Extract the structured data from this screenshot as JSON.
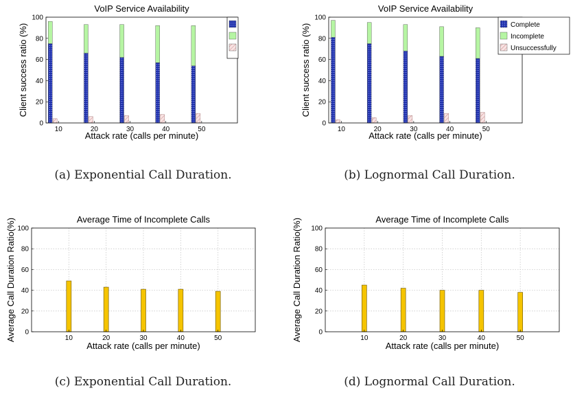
{
  "figures": [
    {
      "caption": "(a) Exponential Call Duration.",
      "chart_data": {
        "type": "bar",
        "stacked": true,
        "title": "VoIP Service Availability",
        "xlabel": "Attack rate (calls per minute)",
        "ylabel": "Client success ratio (%)",
        "categories": [
          "10",
          "20",
          "30",
          "40",
          "50"
        ],
        "ylim": [
          0,
          100
        ],
        "yticks": [
          "0",
          "20",
          "40",
          "60",
          "80",
          "100"
        ],
        "grid": false,
        "legend": {
          "placement": "top-right",
          "entries_visible": false
        },
        "series": [
          {
            "key": "complete",
            "values": [
              75,
              66,
              62,
              57,
              54
            ],
            "color": "#1d2fa8"
          },
          {
            "key": "incomplete",
            "values": [
              21,
              27,
              31,
              35,
              38
            ],
            "color": "#b6f5a3"
          },
          {
            "key": "unsuccessful",
            "values": [
              4,
              6,
              7,
              8,
              9
            ],
            "color": "#f6d6d6"
          }
        ]
      }
    },
    {
      "caption": "(b) Lognormal Call Duration.",
      "chart_data": {
        "type": "bar",
        "stacked": true,
        "title": "VoIP Service Availability",
        "xlabel": "Attack rate (calls per minute)",
        "ylabel": "Client success ratio (%)",
        "categories": [
          "10",
          "20",
          "30",
          "40",
          "50"
        ],
        "ylim": [
          0,
          100
        ],
        "yticks": [
          "0",
          "20",
          "40",
          "60",
          "80",
          "100"
        ],
        "grid": false,
        "legend": {
          "placement": "top-right",
          "entries_visible": true
        },
        "series": [
          {
            "name": "Complete",
            "key": "complete",
            "values": [
              81,
              75,
              68,
              63,
              61
            ],
            "color": "#1d2fa8"
          },
          {
            "name": "Incomplete",
            "key": "incomplete",
            "values": [
              16,
              20,
              25,
              28,
              29
            ],
            "color": "#b6f5a3"
          },
          {
            "name": "Unsuccessfully",
            "key": "unsuccessful",
            "values": [
              3,
              5,
              7,
              9,
              10
            ],
            "color": "#f6d6d6"
          }
        ]
      }
    },
    {
      "caption": "(c) Exponential Call Duration.",
      "chart_data": {
        "type": "bar",
        "stacked": false,
        "title": "Average Time of Incomplete Calls",
        "xlabel": "Attack rate (calls per minute)",
        "ylabel": "Average Call Duration Ratio(%)",
        "categories": [
          "10",
          "20",
          "30",
          "40",
          "50"
        ],
        "ylim": [
          0,
          100
        ],
        "yticks": [
          "0",
          "20",
          "40",
          "60",
          "80",
          "100"
        ],
        "grid": true,
        "series": [
          {
            "key": "avg",
            "values": [
              49,
              43,
              41,
              41,
              39
            ],
            "color": "#f5c400"
          }
        ]
      }
    },
    {
      "caption": "(d) Lognormal Call Duration.",
      "chart_data": {
        "type": "bar",
        "stacked": false,
        "title": "Average Time of Incomplete Calls",
        "xlabel": "Attack rate (calls per minute)",
        "ylabel": "Average Call Duration Ratio(%)",
        "categories": [
          "10",
          "20",
          "30",
          "40",
          "50"
        ],
        "ylim": [
          0,
          100
        ],
        "yticks": [
          "0",
          "20",
          "40",
          "60",
          "80",
          "100"
        ],
        "grid": true,
        "series": [
          {
            "key": "avg",
            "values": [
              45,
              42,
              40,
              40,
              38
            ],
            "color": "#f5c400"
          }
        ]
      }
    }
  ]
}
